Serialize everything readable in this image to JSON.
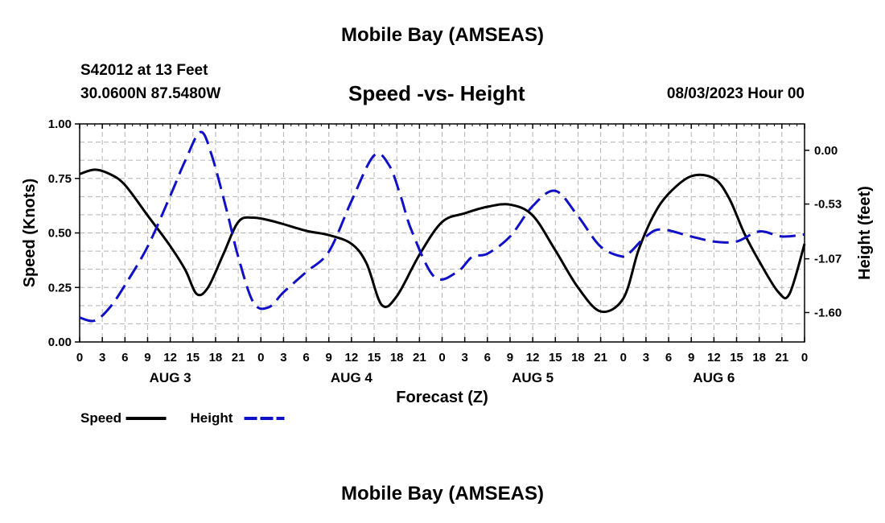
{
  "header": {
    "title": "Mobile Bay (AMSEAS)",
    "station": "S42012 at 13 Feet",
    "coords": "30.0600N  87.5480W",
    "subtitle": "Speed -vs- Height",
    "datetime": "08/03/2023 Hour 00"
  },
  "footer": {
    "title": "Mobile Bay (AMSEAS)"
  },
  "colors": {
    "speed": "#000000",
    "height": "#1010c8",
    "grid": "#b4b4b4"
  },
  "chart_data": {
    "type": "line",
    "title": "Speed -vs- Height",
    "xlabel": "Forecast (Z)",
    "ylabel": "Speed (Knots)",
    "y2label": "Height (feet)",
    "x_hours_range": [
      0,
      96
    ],
    "x_tick_labels": [
      "0",
      "3",
      "6",
      "9",
      "12",
      "15",
      "18",
      "21",
      "0",
      "3",
      "6",
      "9",
      "12",
      "15",
      "18",
      "21",
      "0",
      "3",
      "6",
      "9",
      "12",
      "15",
      "18",
      "21",
      "0",
      "3",
      "6",
      "9",
      "12",
      "15",
      "18",
      "21",
      "0"
    ],
    "day_labels": [
      "AUG 3",
      "AUG 4",
      "AUG 5",
      "AUG 6"
    ],
    "ylim": [
      0,
      1.0
    ],
    "y_ticks": [
      "0.00",
      "0.25",
      "0.50",
      "0.75",
      "1.00"
    ],
    "y2lim": [
      -1.89,
      0.26
    ],
    "y2_ticks": [
      "0.00",
      "-0.53",
      "-1.07",
      "-1.60"
    ],
    "grid": true,
    "legend_position": "bottom-left",
    "series": [
      {
        "name": "Speed",
        "axis": "left",
        "style": "solid",
        "x": [
          0,
          2,
          4,
          6,
          9,
          12,
          14,
          15.5,
          17,
          19,
          21,
          23,
          26,
          30,
          33,
          36,
          38,
          40,
          42,
          45,
          48,
          51,
          54,
          57,
          60,
          63,
          66,
          69,
          72,
          74,
          76,
          78,
          81,
          84,
          86,
          88,
          90,
          92.5,
          94,
          96
        ],
        "values": [
          0.77,
          0.79,
          0.77,
          0.72,
          0.58,
          0.44,
          0.33,
          0.22,
          0.25,
          0.4,
          0.55,
          0.57,
          0.55,
          0.51,
          0.49,
          0.45,
          0.36,
          0.17,
          0.21,
          0.4,
          0.55,
          0.59,
          0.62,
          0.63,
          0.58,
          0.42,
          0.25,
          0.14,
          0.2,
          0.42,
          0.58,
          0.68,
          0.76,
          0.75,
          0.66,
          0.5,
          0.37,
          0.23,
          0.22,
          0.45
        ]
      },
      {
        "name": "Height",
        "axis": "right",
        "style": "dashed",
        "x": [
          0,
          2,
          4,
          6,
          9,
          12,
          14,
          16,
          17.5,
          19.5,
          21,
          23,
          25,
          27,
          30,
          33,
          36,
          39,
          41,
          42.5,
          44,
          47,
          50,
          52,
          54,
          57,
          60,
          63,
          66,
          69,
          72,
          73,
          75,
          77,
          81,
          84,
          87,
          90,
          93,
          96
        ],
        "values": [
          -1.65,
          -1.68,
          -1.55,
          -1.33,
          -0.95,
          -0.45,
          -0.1,
          0.18,
          -0.05,
          -0.6,
          -1.05,
          -1.5,
          -1.55,
          -1.4,
          -1.2,
          -1.0,
          -0.5,
          -0.05,
          -0.15,
          -0.45,
          -0.8,
          -1.25,
          -1.2,
          -1.05,
          -1.02,
          -0.85,
          -0.55,
          -0.4,
          -0.65,
          -0.95,
          -1.05,
          -1.0,
          -0.85,
          -0.78,
          -0.85,
          -0.9,
          -0.9,
          -0.8,
          -0.85,
          -0.83
        ]
      }
    ]
  }
}
